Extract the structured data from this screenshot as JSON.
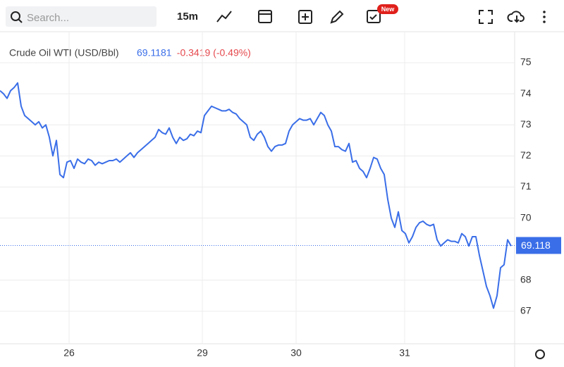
{
  "toolbar": {
    "search_placeholder": "Search...",
    "interval": "15m",
    "badge": "New"
  },
  "chart_data": {
    "type": "line",
    "title": "Crude Oil WTI (USD/Bbl)",
    "price_label": "69.1181",
    "change_label": "-0.3419 (-0.49%)",
    "last_value": 69.118,
    "x": [
      0,
      1,
      2,
      3,
      4,
      5,
      6,
      7,
      8,
      9,
      10,
      11,
      12,
      13,
      14,
      15,
      16,
      17,
      18,
      19,
      20,
      21,
      22,
      23,
      24,
      25,
      26,
      27,
      28,
      29,
      30,
      31,
      32,
      33,
      34,
      35,
      36,
      37,
      38,
      39,
      40,
      41,
      42,
      43,
      44,
      45,
      46,
      47,
      48,
      49,
      50,
      51,
      52,
      53,
      54,
      55,
      56,
      57,
      58,
      59,
      60,
      61,
      62,
      63,
      64,
      65,
      66,
      67,
      68,
      69,
      70,
      71,
      72,
      73,
      74,
      75,
      76,
      77,
      78,
      79,
      80,
      81,
      82,
      83,
      84,
      85,
      86,
      87,
      88,
      89,
      90,
      91,
      92,
      93,
      94,
      95,
      96,
      97,
      98,
      99,
      100,
      101,
      102,
      103,
      104,
      105,
      106,
      107,
      108,
      109,
      110,
      111,
      112,
      113,
      114,
      115,
      116,
      117,
      118,
      119,
      120,
      121,
      122,
      123,
      124,
      125,
      126,
      127,
      128,
      129,
      130,
      131,
      132,
      133,
      134,
      135,
      136,
      137,
      138,
      139,
      140,
      141,
      142,
      143,
      144,
      145
    ],
    "series": [
      {
        "name": "Crude Oil WTI (USD/Bbl)",
        "color": "#3a6ee8",
        "values": [
          74.1,
          74.0,
          73.85,
          74.1,
          74.2,
          74.35,
          73.6,
          73.3,
          73.2,
          73.1,
          73.0,
          73.1,
          72.9,
          73.0,
          72.6,
          72.0,
          72.5,
          71.4,
          71.3,
          71.8,
          71.85,
          71.6,
          71.9,
          71.8,
          71.75,
          71.9,
          71.85,
          71.7,
          71.8,
          71.75,
          71.8,
          71.85,
          71.85,
          71.9,
          71.8,
          71.9,
          72.0,
          72.1,
          71.95,
          72.1,
          72.2,
          72.3,
          72.4,
          72.5,
          72.6,
          72.85,
          72.75,
          72.7,
          72.9,
          72.6,
          72.4,
          72.6,
          72.5,
          72.55,
          72.7,
          72.65,
          72.8,
          72.75,
          73.3,
          73.45,
          73.6,
          73.55,
          73.5,
          73.45,
          73.45,
          73.5,
          73.4,
          73.35,
          73.2,
          73.1,
          73.0,
          72.6,
          72.5,
          72.7,
          72.8,
          72.6,
          72.3,
          72.15,
          72.3,
          72.35,
          72.35,
          72.4,
          72.8,
          73.0,
          73.1,
          73.2,
          73.15,
          73.15,
          73.2,
          73.0,
          73.2,
          73.4,
          73.3,
          73.0,
          72.8,
          72.3,
          72.3,
          72.2,
          72.15,
          72.4,
          71.8,
          71.85,
          71.6,
          71.5,
          71.3,
          71.6,
          71.95,
          71.9,
          71.6,
          71.4,
          70.6,
          70.0,
          69.7,
          70.2,
          69.6,
          69.5,
          69.2,
          69.4,
          69.7,
          69.85,
          69.9,
          69.8,
          69.75,
          69.8,
          69.3,
          69.1,
          69.2,
          69.3,
          69.25,
          69.25,
          69.2,
          69.5,
          69.4,
          69.1,
          69.4,
          69.4,
          68.8,
          68.3,
          67.8,
          67.5,
          67.1,
          67.5,
          68.4,
          68.5,
          69.3,
          69.1
        ]
      }
    ],
    "xlim": [
      0,
      145.6
    ],
    "xticks": [
      {
        "value": 19.6,
        "label": "26"
      },
      {
        "value": 57.4,
        "label": "29"
      },
      {
        "value": 84,
        "label": "30"
      },
      {
        "value": 114.8,
        "label": "31"
      }
    ],
    "ylim": [
      66,
      76
    ],
    "yticks": [
      67,
      68,
      70,
      71,
      72,
      73,
      74,
      75
    ],
    "grid": true
  }
}
